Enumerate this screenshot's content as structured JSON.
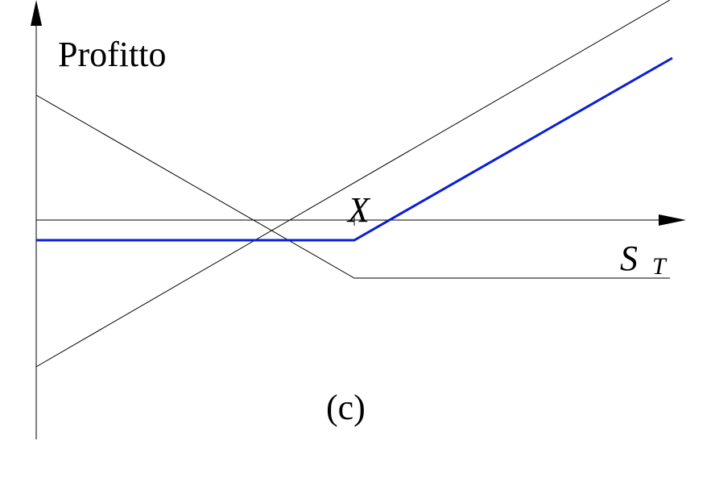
{
  "labels": {
    "y_axis": "Profitto",
    "strike": "X",
    "x_axis": "S",
    "x_axis_sub": "T",
    "caption": "(c)"
  }
}
